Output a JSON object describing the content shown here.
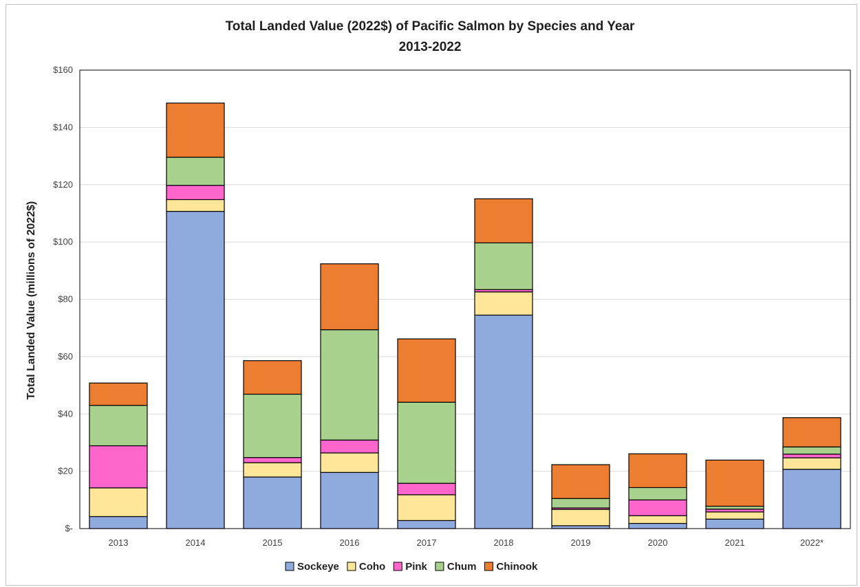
{
  "chart_data": {
    "type": "bar",
    "stacked": true,
    "title": "Total Landed Value (2022$) of Pacific Salmon by Species and Year",
    "subtitle": "2013-2022",
    "ylabel": "Total Landed Value (millions of 2022$)",
    "xlabel": "",
    "ylim": [
      0,
      160
    ],
    "yticks": [
      0,
      20,
      40,
      60,
      80,
      100,
      120,
      140,
      160
    ],
    "ytick_labels": [
      "$-",
      "$20",
      "$40",
      "$60",
      "$80",
      "$100",
      "$120",
      "$140",
      "$160"
    ],
    "grid": true,
    "legend_position": "bottom",
    "categories": [
      "2013",
      "2014",
      "2015",
      "2016",
      "2017",
      "2018",
      "2019",
      "2020",
      "2021",
      "2022*"
    ],
    "series": [
      {
        "name": "Sockeye",
        "color": "#8faadc",
        "values": [
          4.2,
          110.7,
          18.0,
          19.6,
          2.8,
          74.5,
          1.0,
          1.8,
          3.3,
          20.7
        ]
      },
      {
        "name": "Coho",
        "color": "#ffe699",
        "values": [
          10.0,
          4.1,
          5.0,
          6.8,
          9.0,
          8.1,
          5.7,
          2.7,
          2.5,
          4.0
        ]
      },
      {
        "name": "Pink",
        "color": "#ff66cc",
        "values": [
          14.7,
          5.0,
          1.8,
          4.5,
          4.0,
          0.8,
          0.5,
          5.5,
          1.0,
          1.3
        ]
      },
      {
        "name": "Chum",
        "color": "#a9d18e",
        "values": [
          14.1,
          9.8,
          22.1,
          38.5,
          28.3,
          16.3,
          3.3,
          4.3,
          1.0,
          2.5
        ]
      },
      {
        "name": "Chinook",
        "color": "#ed7d31",
        "values": [
          7.8,
          18.9,
          11.7,
          23.0,
          22.1,
          15.4,
          11.8,
          11.8,
          16.1,
          10.2
        ]
      }
    ]
  }
}
